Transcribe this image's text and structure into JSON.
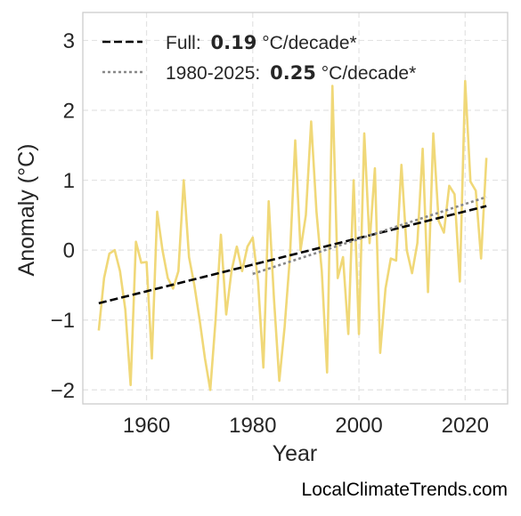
{
  "chart_data": {
    "type": "line",
    "xlabel": "Year",
    "ylabel": "Anomaly (°C)",
    "xlim": [
      1948,
      2028
    ],
    "ylim": [
      -2.2,
      3.4
    ],
    "x_ticks": [
      1960,
      1980,
      2000,
      2020
    ],
    "y_ticks": [
      {
        "value": -2,
        "label": "−2"
      },
      {
        "value": -1,
        "label": "−1"
      },
      {
        "value": 0,
        "label": "0"
      },
      {
        "value": 1,
        "label": "1"
      },
      {
        "value": 2,
        "label": "2"
      },
      {
        "value": 3,
        "label": "3"
      }
    ],
    "grid": true,
    "legend_position": "top-left",
    "series": [
      {
        "kind": "data",
        "color": "#f0d878",
        "x": [
          1951,
          1952,
          1953,
          1954,
          1955,
          1956,
          1957,
          1958,
          1959,
          1960,
          1961,
          1962,
          1963,
          1964,
          1965,
          1966,
          1967,
          1968,
          1969,
          1970,
          1971,
          1972,
          1973,
          1974,
          1975,
          1976,
          1977,
          1978,
          1979,
          1980,
          1981,
          1982,
          1983,
          1984,
          1985,
          1986,
          1987,
          1988,
          1989,
          1990,
          1991,
          1992,
          1993,
          1994,
          1995,
          1996,
          1997,
          1998,
          1999,
          2000,
          2001,
          2002,
          2003,
          2004,
          2005,
          2006,
          2007,
          2008,
          2009,
          2010,
          2011,
          2012,
          2013,
          2014,
          2015,
          2016,
          2017,
          2018,
          2019,
          2020,
          2021,
          2022,
          2023,
          2024
        ],
        "y": [
          -1.15,
          -0.4,
          -0.05,
          0.0,
          -0.3,
          -0.85,
          -1.93,
          0.12,
          -0.18,
          -0.17,
          -1.55,
          0.55,
          0.0,
          -0.4,
          -0.55,
          -0.3,
          1.0,
          -0.1,
          -0.5,
          -1.0,
          -1.55,
          -2.0,
          -1.0,
          0.22,
          -0.92,
          -0.3,
          0.05,
          -0.3,
          0.05,
          0.18,
          -0.45,
          -1.68,
          0.7,
          -0.7,
          -1.87,
          -1.1,
          -0.1,
          1.57,
          0.0,
          0.5,
          1.84,
          0.55,
          -0.3,
          -1.75,
          2.35,
          -0.4,
          -0.1,
          -1.2,
          1.0,
          -1.2,
          1.67,
          0.1,
          1.17,
          -1.47,
          -0.55,
          -0.12,
          -0.15,
          1.22,
          0.0,
          -0.33,
          0.1,
          1.45,
          -0.6,
          1.67,
          0.42,
          0.25,
          0.92,
          0.8,
          -0.45,
          2.42,
          0.98,
          0.85,
          -0.12,
          1.32
        ]
      },
      {
        "kind": "trend",
        "name": "Full:",
        "rate": "0.19",
        "unit": "°C/decade*",
        "color": "#000000",
        "style": "dashed",
        "x": [
          1951,
          2024
        ],
        "y": [
          -0.76,
          0.63
        ]
      },
      {
        "kind": "trend",
        "name": "1980-2025:",
        "rate": "0.25",
        "unit": "°C/decade*",
        "color": "#888888",
        "style": "dotted",
        "x": [
          1980,
          2024
        ],
        "y": [
          -0.34,
          0.76
        ]
      }
    ]
  },
  "credit": "LocalClimateTrends.com"
}
